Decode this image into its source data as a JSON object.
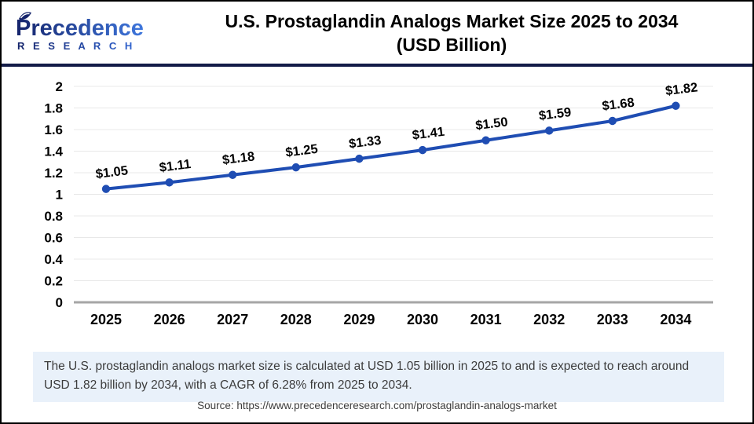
{
  "header": {
    "logo_brand": "Precedence",
    "logo_sub": "R E S E A R C H",
    "title_line1": "U.S. Prostaglandin Analogs Market Size 2025 to 2034",
    "title_line2": "(USD Billion)"
  },
  "chart_data": {
    "type": "line",
    "title": "U.S. Prostaglandin Analogs Market Size 2025 to 2034 (USD Billion)",
    "categories": [
      "2025",
      "2026",
      "2027",
      "2028",
      "2029",
      "2030",
      "2031",
      "2032",
      "2033",
      "2034"
    ],
    "series": [
      {
        "name": "U.S. Prostaglandin Analogs Market Size (USD Billion)",
        "values": [
          1.05,
          1.11,
          1.18,
          1.25,
          1.33,
          1.41,
          1.5,
          1.59,
          1.68,
          1.82
        ],
        "point_labels": [
          "$1.05",
          "$1.11",
          "$1.18",
          "$1.25",
          "$1.33",
          "$1.41",
          "$1.50",
          "$1.59",
          "$1.68",
          "$1.82"
        ]
      }
    ],
    "xlabel": "",
    "ylabel": "",
    "ylim": [
      0,
      2
    ],
    "ytick_step": 0.2,
    "ytick_labels": [
      "0",
      "0.2",
      "0.4",
      "0.6",
      "0.8",
      "1",
      "1.2",
      "1.4",
      "1.6",
      "1.8",
      "2"
    ],
    "grid": true,
    "legend": "none",
    "line_color": "#1f4db3",
    "marker_color": "#1f4db3",
    "gridline_color": "#e8e8e8",
    "axis_line_color": "#a6a6a6",
    "label_color": "#000000"
  },
  "footer": {
    "note": "The U.S. prostaglandin analogs market size is calculated at USD 1.05 billion in 2025 to and is expected to reach around USD 1.82 billion by 2034, with a CAGR of 6.28% from 2025 to 2034.",
    "source": "Source: https://www.precedenceresearch.com/prostaglandin-analogs-market"
  },
  "colors": {
    "header_rule": "#131b47",
    "note_bg": "#e9f1fa",
    "logo_dark": "#15246b",
    "logo_light": "#3f77dd"
  }
}
